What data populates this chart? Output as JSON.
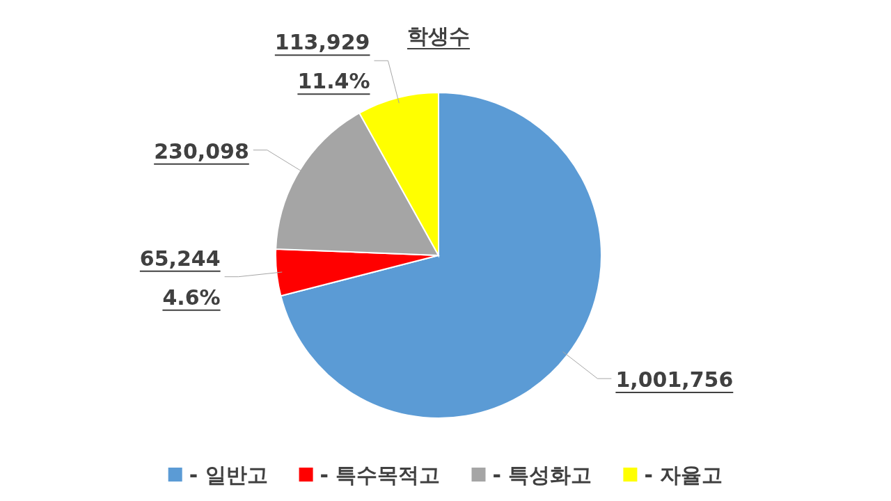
{
  "chart_data": {
    "type": "pie",
    "title": "학생수",
    "categories": [
      "- 일반고",
      "- 특수목적고",
      "- 특성화고",
      "- 자율고"
    ],
    "values": [
      1001756,
      65244,
      230098,
      113929
    ],
    "colors": [
      "#5b9bd5",
      "#ff0000",
      "#a5a5a5",
      "#ffff00"
    ],
    "value_labels": [
      "1,001,756",
      "65,244\n4.6%",
      "230,098",
      "113,929\n11.4%"
    ],
    "legend": "bottom"
  }
}
